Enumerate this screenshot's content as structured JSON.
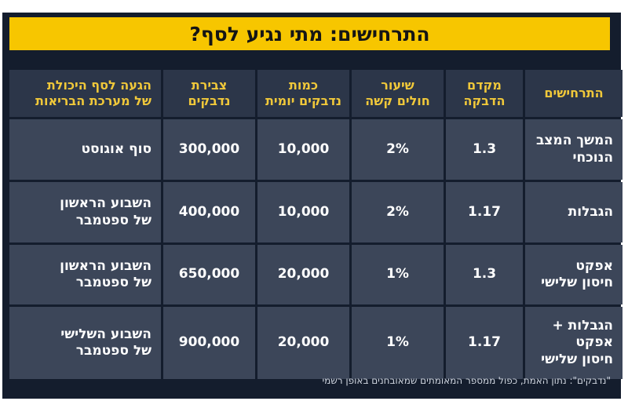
{
  "title": "התרחישים: מתי נגיע לסף?",
  "table": {
    "headers": {
      "scenario": "התרחישים",
      "infection_coefficient": "מקדם\nהדבקה",
      "severe_rate": "שיעור\nחולים קשה",
      "daily_infected": "כמות\nנדבקים יומית",
      "cumulative_infected": "צבירת\nנדבקים",
      "capacity_threshold": "הגעה לסף היכולת\nשל מערכת הבריאות"
    },
    "rows": [
      {
        "scenario": "המשך המצב\nהנוכחי",
        "infection_coefficient": "1.3",
        "severe_rate": "2%",
        "daily_infected": "10,000",
        "cumulative_infected": "300,000",
        "capacity_threshold": "סוף אוגוסט"
      },
      {
        "scenario": "הגבלות",
        "infection_coefficient": "1.17",
        "severe_rate": "2%",
        "daily_infected": "10,000",
        "cumulative_infected": "400,000",
        "capacity_threshold": "השבוע הראשון\nשל ספטמבר"
      },
      {
        "scenario": "אפקט\nחיסון שלישי",
        "infection_coefficient": "1.3",
        "severe_rate": "1%",
        "daily_infected": "20,000",
        "cumulative_infected": "650,000",
        "capacity_threshold": "השבוע הראשון\nשל ספטמבר"
      },
      {
        "scenario": "הגבלות +\nאפקט\nחיסון שלישי",
        "infection_coefficient": "1.17",
        "severe_rate": "1%",
        "daily_infected": "20,000",
        "cumulative_infected": "900,000",
        "capacity_threshold": "השבוע השלישי\nשל ספטמבר"
      }
    ]
  },
  "footnote": "\"נדבקים\": נתון האמת, כפול ממספר המאומתים שמאובחנים באופן רשמי",
  "colors": {
    "title_bg": "#f7c600",
    "header_text": "#f0c83a",
    "cell_bg": "#3c4659",
    "background": "#141d2d"
  }
}
